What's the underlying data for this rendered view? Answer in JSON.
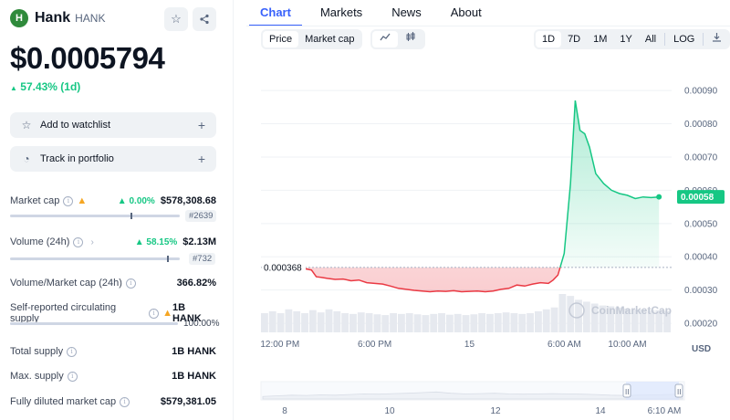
{
  "coin": {
    "name": "Hank",
    "symbol": "HANK",
    "logo_letter": "H",
    "price": "$0.0005794",
    "change": "57.43% (1d)",
    "change_arrow": "▲"
  },
  "actions": {
    "watchlist": "Add to watchlist",
    "portfolio": "Track in portfolio",
    "plus": "+"
  },
  "stats": {
    "market_cap": {
      "label": "Market cap",
      "pct": "▲ 0.00%",
      "value": "$578,308.68",
      "rank": "#2639"
    },
    "volume": {
      "label": "Volume (24h)",
      "pct": "▲ 58.15%",
      "value": "$2.13M",
      "rank": "#732"
    },
    "vol_mcap": {
      "label": "Volume/Market cap (24h)",
      "value": "366.82%"
    },
    "self_supply": {
      "label": "Self-reported circulating supply",
      "value": "1B HANK",
      "pct": "100.00%",
      "fill": 1.0
    },
    "total_supply": {
      "label": "Total supply",
      "value": "1B HANK"
    },
    "max_supply": {
      "label": "Max. supply",
      "value": "1B HANK"
    },
    "fdmc": {
      "label": "Fully diluted market cap",
      "value": "$579,381.05"
    }
  },
  "tabs": [
    "Chart",
    "Markets",
    "News",
    "About"
  ],
  "controls": {
    "type_options": [
      "Price",
      "Market cap"
    ],
    "ranges": [
      "1D",
      "7D",
      "1M",
      "1Y",
      "All"
    ],
    "log_label": "LOG"
  },
  "chart_data": {
    "type": "line",
    "y_ticks": [
      0.0002,
      0.0003,
      0.0004,
      0.0005,
      0.0006,
      0.0007,
      0.0008,
      0.0009
    ],
    "y_tick_labels": [
      "0.00020",
      "0.00030",
      "0.00040",
      "0.00050",
      "0.00060",
      "0.00070",
      "0.00080",
      "0.00090"
    ],
    "ylim": [
      0.00017,
      0.00098
    ],
    "x_tick_labels": [
      "12:00 PM",
      "6:00 PM",
      "15",
      "6:00 AM",
      "10:00 AM"
    ],
    "x_tick_hours": [
      0,
      6,
      12,
      18,
      22
    ],
    "x_range_hours": [
      -1.2,
      24.8
    ],
    "open_price_label": "0.000368",
    "open_price": 0.000368,
    "current_price_label": "0.00058",
    "current_price": 0.00058,
    "currency": "USD",
    "watermark": "CoinMarketCap",
    "series": [
      {
        "x_hours": [
          1,
          1.5,
          2,
          2.3,
          2.6,
          3,
          3.5,
          4,
          4.5,
          5,
          5.5,
          6,
          6.5,
          7,
          7.5,
          8,
          8.5,
          9,
          9.5,
          10,
          10.5,
          11,
          11.5,
          12,
          12.5,
          13,
          13.5,
          14,
          14.5,
          15,
          15.5,
          16,
          16.5,
          17,
          17.3,
          17.6,
          18,
          18.4,
          18.7,
          19,
          19.3,
          19.6,
          20,
          20.5,
          21,
          21.5,
          22,
          22.5,
          23,
          23.5,
          24
        ],
        "values": [
          0.000368,
          0.000365,
          0.00036,
          0.00034,
          0.000338,
          0.000335,
          0.000332,
          0.000333,
          0.000328,
          0.00033,
          0.000322,
          0.00032,
          0.000318,
          0.000312,
          0.000305,
          0.000302,
          0.000299,
          0.000297,
          0.000295,
          0.000297,
          0.000296,
          0.000298,
          0.000295,
          0.000296,
          0.000297,
          0.000295,
          0.000297,
          0.000302,
          0.000305,
          0.000315,
          0.000312,
          0.000318,
          0.000322,
          0.00032,
          0.00033,
          0.000345,
          0.00041,
          0.00062,
          0.00087,
          0.00078,
          0.00077,
          0.00073,
          0.00065,
          0.00062,
          0.0006,
          0.00059,
          0.000585,
          0.000575,
          0.00058,
          0.000578,
          0.00058
        ]
      }
    ],
    "volume_bars_relative": [
      0.5,
      0.55,
      0.5,
      0.6,
      0.55,
      0.5,
      0.58,
      0.52,
      0.6,
      0.55,
      0.5,
      0.48,
      0.52,
      0.5,
      0.47,
      0.45,
      0.5,
      0.48,
      0.5,
      0.47,
      0.45,
      0.48,
      0.5,
      0.46,
      0.48,
      0.45,
      0.47,
      0.5,
      0.48,
      0.5,
      0.52,
      0.5,
      0.48,
      0.5,
      0.55,
      0.6,
      0.65,
      1.0,
      0.95,
      0.85,
      0.8,
      0.75,
      0.7,
      0.68,
      0.65,
      0.62,
      0.6,
      0.6,
      0.58,
      0.58,
      0.56
    ],
    "navigator_tick_labels": [
      "8",
      "10",
      "12",
      "14",
      "6:10 AM"
    ],
    "navigator_handle": "II"
  },
  "colors": {
    "up": "#16c784",
    "down": "#ea3943",
    "accent": "#3861fb"
  },
  "icons": {
    "star": "star-icon",
    "share": "share-icon",
    "download": "download-icon"
  }
}
